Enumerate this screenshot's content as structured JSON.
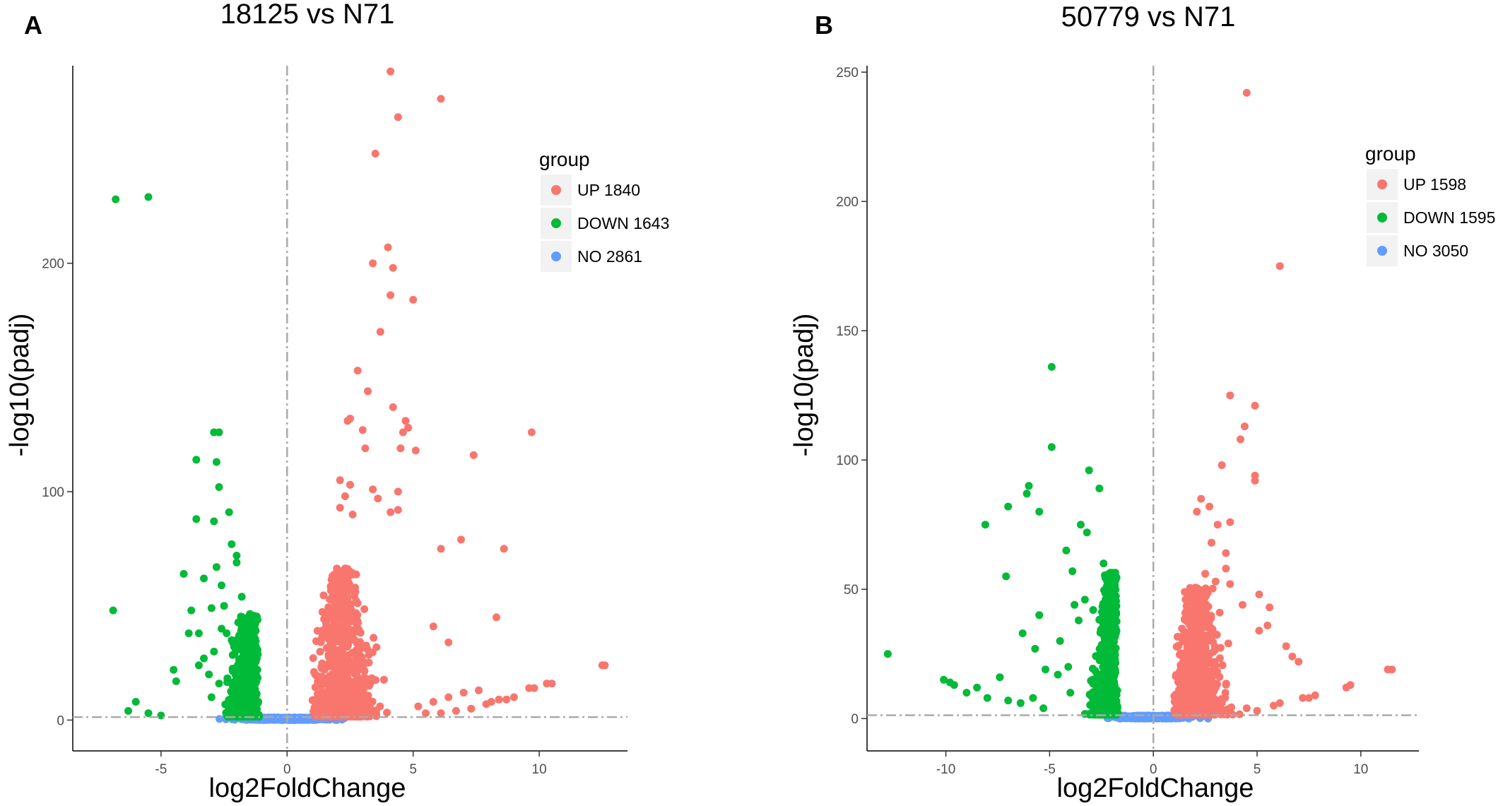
{
  "colors": {
    "up": "#f8766d",
    "down": "#00ba38",
    "no": "#619cff"
  },
  "chart_data": [
    {
      "type": "scatter",
      "panel": "A",
      "title": "18125 vs N71",
      "xlabel": "log2FoldChange",
      "ylabel": "-log10(padj)",
      "xlim": [
        -8.5,
        13.5
      ],
      "ylim": [
        -13.5,
        286.5
      ],
      "xticks": [
        -5,
        0,
        5,
        10
      ],
      "yticks": [
        0,
        100,
        200
      ],
      "vline": 0,
      "hline": 1.3,
      "legend": {
        "title": "group",
        "placement": "top-right",
        "entries": [
          {
            "label": "UP 1840",
            "group": "up"
          },
          {
            "label": "DOWN 1643",
            "group": "down"
          },
          {
            "label": "NO 2861",
            "group": "no"
          }
        ]
      },
      "series": [
        {
          "name": "UP",
          "count": 1840,
          "points": [
            [
              4.1,
              284
            ],
            [
              6.1,
              272
            ],
            [
              4.4,
              264
            ],
            [
              3.5,
              248
            ],
            [
              4.0,
              207
            ],
            [
              3.4,
              200
            ],
            [
              4.2,
              198
            ],
            [
              4.1,
              186
            ],
            [
              5.0,
              184
            ],
            [
              3.7,
              170
            ],
            [
              2.8,
              153
            ],
            [
              3.2,
              144
            ],
            [
              4.2,
              137
            ],
            [
              2.5,
              132
            ],
            [
              2.4,
              131
            ],
            [
              4.7,
              131
            ],
            [
              4.8,
              128
            ],
            [
              3.0,
              127
            ],
            [
              9.7,
              126
            ],
            [
              4.5,
              119
            ],
            [
              4.6,
              126
            ],
            [
              3.1,
              119
            ],
            [
              5.1,
              118
            ],
            [
              7.4,
              116
            ],
            [
              2.1,
              105
            ],
            [
              2.5,
              103
            ],
            [
              4.4,
              100
            ],
            [
              2.3,
              98
            ],
            [
              3.4,
              101
            ],
            [
              3.6,
              97
            ],
            [
              2.1,
              93
            ],
            [
              2.6,
              90
            ],
            [
              4.4,
              92
            ],
            [
              4.1,
              91
            ],
            [
              6.9,
              79
            ],
            [
              8.6,
              75
            ],
            [
              6.1,
              75
            ],
            [
              8.3,
              45
            ],
            [
              5.8,
              41
            ],
            [
              6.4,
              34
            ],
            [
              12.6,
              24
            ],
            [
              12.5,
              24
            ],
            [
              10.5,
              16
            ],
            [
              10.3,
              16
            ],
            [
              9.8,
              14
            ],
            [
              9.6,
              14
            ],
            [
              9.0,
              10
            ],
            [
              8.7,
              9
            ],
            [
              8.4,
              9
            ],
            [
              8.1,
              8
            ],
            [
              7.9,
              7
            ],
            [
              7.6,
              13
            ],
            [
              7.3,
              5
            ],
            [
              7.0,
              12
            ],
            [
              6.7,
              4
            ],
            [
              6.4,
              10
            ],
            [
              6.1,
              3
            ],
            [
              5.8,
              8
            ],
            [
              5.5,
              3
            ],
            [
              5.2,
              6
            ]
          ]
        },
        {
          "name": "DOWN",
          "count": 1643,
          "points": [
            [
              -6.8,
              228
            ],
            [
              -5.5,
              229
            ],
            [
              -6.9,
              48
            ],
            [
              -2.9,
              126
            ],
            [
              -2.7,
              126
            ],
            [
              -3.6,
              114
            ],
            [
              -2.8,
              113
            ],
            [
              -2.7,
              102
            ],
            [
              -3.6,
              88
            ],
            [
              -2.9,
              87
            ],
            [
              -2.3,
              91
            ],
            [
              -2.2,
              77
            ],
            [
              -2.0,
              72
            ],
            [
              -2.0,
              69
            ],
            [
              -2.8,
              67
            ],
            [
              -2.6,
              59
            ],
            [
              -4.1,
              64
            ],
            [
              -3.3,
              62
            ],
            [
              -1.8,
              54
            ],
            [
              -2.5,
              50
            ],
            [
              -3.0,
              49
            ],
            [
              -4.5,
              22
            ],
            [
              -4.4,
              17
            ],
            [
              -3.8,
              48
            ],
            [
              -3.9,
              38
            ],
            [
              -3.5,
              38
            ],
            [
              -6.0,
              8
            ],
            [
              -6.3,
              4
            ],
            [
              -5.5,
              3
            ],
            [
              -5.0,
              2
            ],
            [
              -2.6,
              40
            ],
            [
              -2.4,
              38
            ],
            [
              -2.2,
              35
            ],
            [
              -2.1,
              32
            ],
            [
              -2.9,
              30
            ],
            [
              -3.3,
              27
            ],
            [
              -3.5,
              24
            ],
            [
              -3.1,
              20
            ],
            [
              -2.7,
              16
            ],
            [
              -3.0,
              10
            ]
          ]
        }
      ]
    },
    {
      "type": "scatter",
      "panel": "B",
      "title": "50779 vs N71",
      "xlabel": "log2FoldChange",
      "ylabel": "-log10(padj)",
      "xlim": [
        -13.8,
        12.8
      ],
      "ylim": [
        -12.5,
        252.5
      ],
      "xticks": [
        -10,
        -5,
        0,
        5,
        10
      ],
      "yticks": [
        0,
        50,
        100,
        150,
        200,
        250
      ],
      "vline": 0,
      "hline": 1.3,
      "legend": {
        "title": "group",
        "placement": "top-right",
        "entries": [
          {
            "label": "UP 1598",
            "group": "up"
          },
          {
            "label": "DOWN 1595",
            "group": "down"
          },
          {
            "label": "NO 3050",
            "group": "no"
          }
        ]
      },
      "series": [
        {
          "name": "UP",
          "count": 1598,
          "points": [
            [
              4.5,
              242
            ],
            [
              6.1,
              175
            ],
            [
              3.7,
              125
            ],
            [
              4.9,
              121
            ],
            [
              4.4,
              113
            ],
            [
              4.2,
              108
            ],
            [
              3.3,
              98
            ],
            [
              4.9,
              94
            ],
            [
              4.9,
              92
            ],
            [
              2.3,
              85
            ],
            [
              2.7,
              82
            ],
            [
              2.1,
              80
            ],
            [
              3.7,
              76
            ],
            [
              3.1,
              75
            ],
            [
              2.8,
              68
            ],
            [
              3.5,
              64
            ],
            [
              3.5,
              58
            ],
            [
              2.5,
              56
            ],
            [
              3.0,
              53
            ],
            [
              3.7,
              52
            ],
            [
              5.1,
              48
            ],
            [
              4.3,
              44
            ],
            [
              5.6,
              43
            ],
            [
              3.2,
              41
            ],
            [
              5.5,
              36
            ],
            [
              5.1,
              34
            ],
            [
              6.4,
              28
            ],
            [
              6.7,
              24
            ],
            [
              7.0,
              22
            ],
            [
              9.5,
              13
            ],
            [
              9.3,
              12
            ],
            [
              11.3,
              19
            ],
            [
              11.5,
              19
            ],
            [
              7.8,
              9
            ],
            [
              7.5,
              8
            ],
            [
              7.2,
              8
            ],
            [
              6.1,
              6
            ],
            [
              5.8,
              5
            ],
            [
              4.5,
              4
            ],
            [
              5.0,
              3
            ]
          ]
        },
        {
          "name": "DOWN",
          "count": 1595,
          "points": [
            [
              -4.9,
              136
            ],
            [
              -4.9,
              105
            ],
            [
              -3.1,
              96
            ],
            [
              -2.6,
              89
            ],
            [
              -6.0,
              90
            ],
            [
              -6.1,
              87
            ],
            [
              -5.5,
              80
            ],
            [
              -7.0,
              82
            ],
            [
              -8.1,
              75
            ],
            [
              -3.5,
              75
            ],
            [
              -4.2,
              65
            ],
            [
              -7.1,
              55
            ],
            [
              -3.9,
              57
            ],
            [
              -5.5,
              40
            ],
            [
              -6.3,
              33
            ],
            [
              -4.5,
              30
            ],
            [
              -5.7,
              27
            ],
            [
              -4.1,
              20
            ],
            [
              -4.6,
              17
            ],
            [
              -12.8,
              25
            ],
            [
              -10.1,
              15
            ],
            [
              -9.8,
              14
            ],
            [
              -9.6,
              13
            ],
            [
              -9.0,
              10
            ],
            [
              -8.5,
              12
            ],
            [
              -8.0,
              8
            ],
            [
              -7.4,
              16
            ],
            [
              -7.0,
              7
            ],
            [
              -6.4,
              6
            ],
            [
              -5.8,
              8
            ],
            [
              -5.3,
              4
            ],
            [
              -5.2,
              19
            ],
            [
              -4.0,
              10
            ],
            [
              -3.6,
              38
            ],
            [
              -3.3,
              46
            ],
            [
              -2.9,
              42
            ],
            [
              -3.8,
              44
            ],
            [
              -2.4,
              60
            ],
            [
              -3.2,
              72
            ],
            [
              -2.1,
              50
            ]
          ]
        }
      ]
    }
  ]
}
